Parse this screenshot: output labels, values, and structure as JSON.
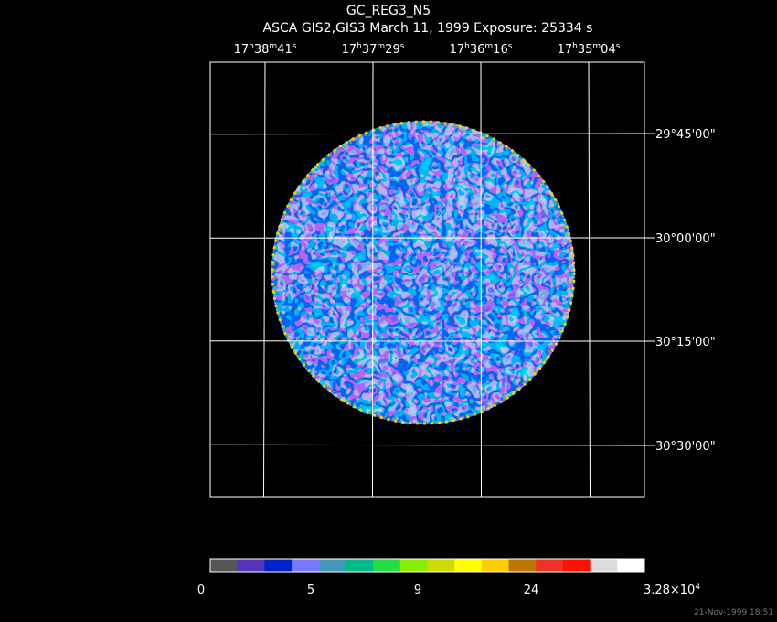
{
  "header": {
    "title": "GC_REG3_N5",
    "subtitle": "ASCA GIS2,GIS3 March 11, 1999 Exposure: 25334 s"
  },
  "ra_labels": [
    [
      "17",
      "h",
      "38",
      "m",
      "41",
      "s"
    ],
    [
      "17",
      "h",
      "37",
      "m",
      "29",
      "s"
    ],
    [
      "17",
      "h",
      "36",
      "m",
      "16",
      "s"
    ],
    [
      "17",
      "h",
      "35",
      "m",
      "04",
      "s"
    ]
  ],
  "dec_labels": [
    "29°45'00\"",
    "30°00'00\"",
    "30°15'00\"",
    "30°30'00\""
  ],
  "colorbar": {
    "colors": [
      "#555555",
      "#5533bb",
      "#0022cc",
      "#7777ff",
      "#4499bb",
      "#00bb88",
      "#22dd44",
      "#88ee00",
      "#ccdd00",
      "#ffff00",
      "#ffcc00",
      "#bb7700",
      "#ee3322",
      "#ff1100",
      "#dddddd",
      "#ffffff"
    ],
    "labels": [
      [
        "0"
      ],
      [
        "5"
      ],
      [
        "9"
      ],
      [
        "24"
      ],
      [
        "3.28×10",
        "4"
      ]
    ]
  },
  "footer": {
    "timestamp": "21-Nov-1999 18:51"
  }
}
